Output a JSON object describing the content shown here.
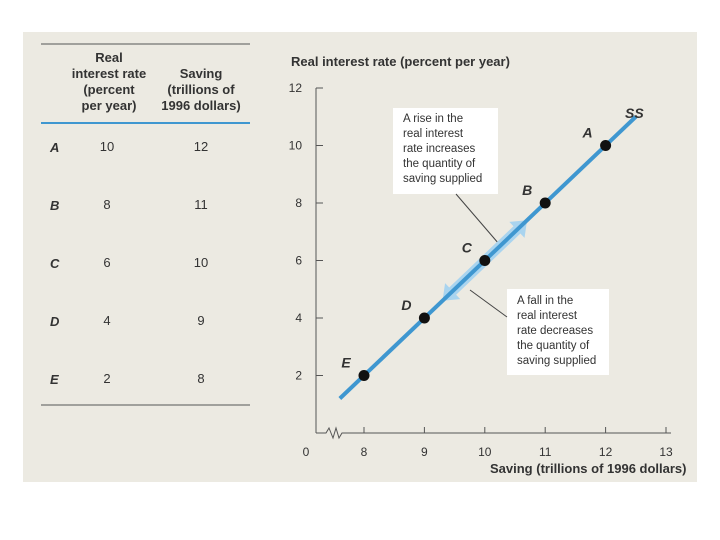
{
  "table": {
    "col1_header": [
      "Real",
      "interest rate",
      "(percent",
      "per year)"
    ],
    "col2_header": [
      "Saving",
      "(trillions of",
      "1996 dollars)"
    ],
    "rows": [
      {
        "label": "A",
        "rate": "10",
        "saving": "12"
      },
      {
        "label": "B",
        "rate": "8",
        "saving": "11"
      },
      {
        "label": "C",
        "rate": "6",
        "saving": "10"
      },
      {
        "label": "D",
        "rate": "4",
        "saving": "9"
      },
      {
        "label": "E",
        "rate": "2",
        "saving": "8"
      }
    ]
  },
  "chart_data": {
    "type": "line",
    "ylabel": "Real interest rate (percent per year)",
    "xlabel": "Saving (trillions of 1996 dollars)",
    "x_ticks": [
      "8",
      "9",
      "10",
      "11",
      "12",
      "13"
    ],
    "y_ticks": [
      "2",
      "4",
      "6",
      "8",
      "10",
      "12"
    ],
    "origin_label": "0",
    "xlim": [
      7.5,
      13
    ],
    "ylim": [
      0,
      12
    ],
    "x_axis_break": true,
    "series": [
      {
        "name": "SS",
        "x": [
          12,
          11,
          10,
          9,
          8
        ],
        "y": [
          10,
          8,
          6,
          4,
          2
        ],
        "point_labels": [
          "A",
          "B",
          "C",
          "D",
          "E"
        ]
      }
    ],
    "line_extent": {
      "x": [
        7.6,
        12.5
      ],
      "y": [
        1.2,
        11
      ]
    },
    "annotations": [
      {
        "text": [
          "A rise in the",
          "real interest",
          "rate increases",
          "the quantity of",
          "saving supplied"
        ]
      },
      {
        "text": [
          "A fall in the",
          "real interest",
          "rate decreases",
          "the quantity of",
          "saving supplied"
        ]
      }
    ],
    "colors": {
      "line": "#3f97d0",
      "arrow": "#a9d4ef",
      "background": "#eceae2",
      "box": "#ffffff"
    }
  }
}
